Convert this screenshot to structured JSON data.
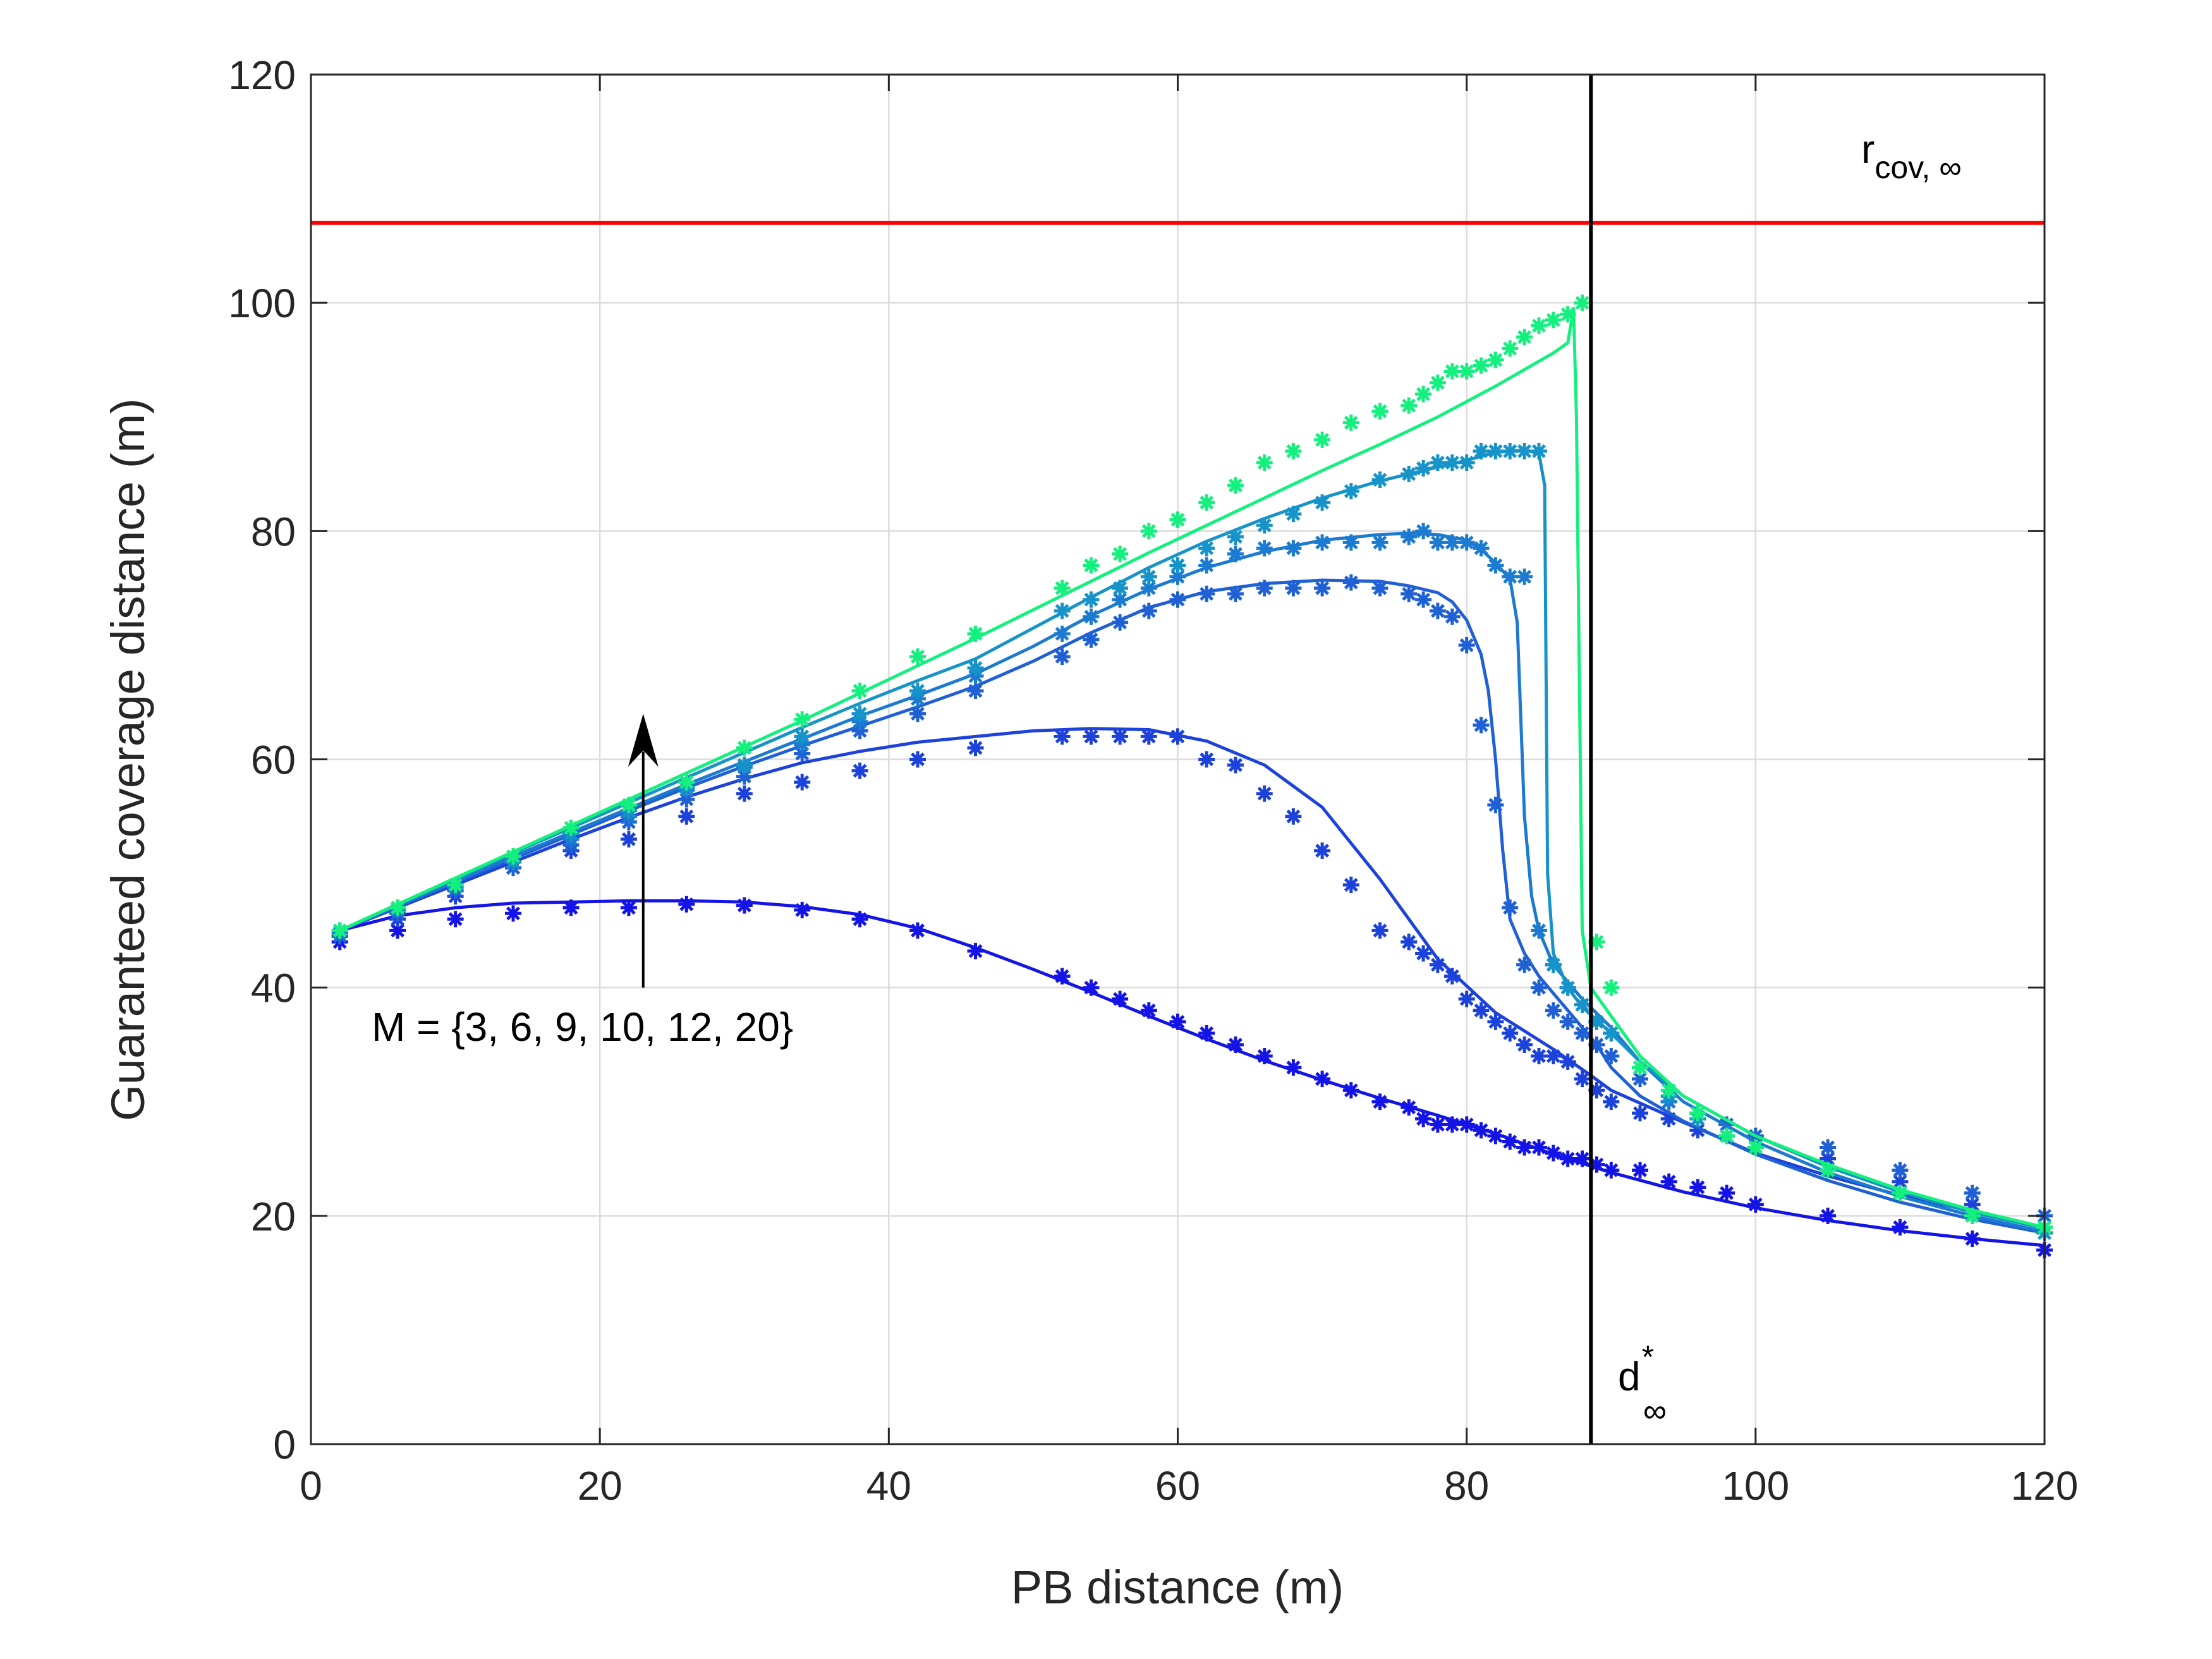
{
  "chart_data": {
    "type": "line",
    "xlabel": "PB distance (m)",
    "ylabel": "Guaranteed coverage distance (m)",
    "xlim": [
      0,
      120
    ],
    "ylim": [
      0,
      120
    ],
    "xticks": [
      0,
      20,
      40,
      60,
      80,
      100,
      120
    ],
    "yticks": [
      0,
      20,
      40,
      60,
      80,
      100,
      120
    ],
    "xtick_labels": [
      "0",
      "20",
      "40",
      "60",
      "80",
      "100",
      "120"
    ],
    "ytick_labels": [
      "0",
      "20",
      "40",
      "60",
      "80",
      "100",
      "120"
    ],
    "grid": true,
    "hline": {
      "y": 107,
      "label_main": "r",
      "label_sub": "cov, ∞",
      "color": "#ff0000"
    },
    "vline": {
      "x": 88.6,
      "label_main": "d",
      "label_sup": "*",
      "label_sub": "∞",
      "color": "#000000"
    },
    "annotation": {
      "text": "M = {3, 6, 9, 10, 12, 20}",
      "arrow_x": 23,
      "arrow_from_y": 40,
      "arrow_to_y": 64
    },
    "series": [
      {
        "name": "M=3",
        "color": "#1414e6",
        "x": [
          2,
          6,
          10,
          14,
          18,
          22,
          26,
          30,
          34,
          38,
          42,
          46,
          50,
          54,
          58,
          62,
          66,
          70,
          74,
          78,
          82,
          86,
          90,
          95,
          100,
          105,
          110,
          115,
          120
        ],
        "y": [
          45,
          46.3,
          47,
          47.4,
          47.5,
          47.6,
          47.6,
          47.5,
          47.1,
          46.4,
          45.2,
          43.5,
          41.6,
          39.6,
          37.5,
          35.5,
          33.6,
          31.9,
          30.3,
          28.8,
          27.2,
          25.4,
          23.8,
          22.1,
          20.7,
          19.6,
          18.7,
          18,
          17.4
        ],
        "mx": [
          2,
          6,
          10,
          14,
          18,
          22,
          26,
          30,
          34,
          38,
          42,
          46,
          52,
          54,
          56,
          58,
          60,
          62,
          64,
          66,
          68,
          70,
          72,
          74,
          76,
          77,
          78,
          79,
          80,
          81,
          82,
          83,
          84,
          85,
          86,
          87,
          88,
          89,
          90,
          92,
          94,
          96,
          98,
          100,
          105,
          110,
          115,
          120
        ],
        "my": [
          44,
          45,
          46,
          46.5,
          47,
          47,
          47.3,
          47.2,
          46.8,
          46,
          45,
          43.2,
          41,
          40,
          39,
          38,
          37,
          36,
          35,
          34,
          33,
          32,
          31,
          30,
          29.5,
          28.5,
          28,
          28,
          28,
          27.5,
          27,
          26.5,
          26,
          26,
          25.5,
          25,
          25,
          24.5,
          24,
          24,
          23,
          22.5,
          22,
          21,
          20,
          19,
          18,
          17
        ]
      },
      {
        "name": "M=6",
        "color": "#1c42db",
        "x": [
          2,
          6,
          10,
          14,
          18,
          22,
          26,
          30,
          34,
          38,
          42,
          46,
          50,
          54,
          58,
          62,
          66,
          70,
          74,
          78,
          82,
          86,
          88.6,
          90,
          95,
          100,
          105,
          110,
          115,
          120
        ],
        "y": [
          45,
          47,
          49,
          51,
          53,
          54.9,
          56.7,
          58.3,
          59.7,
          60.7,
          61.5,
          62,
          62.5,
          62.7,
          62.6,
          61.6,
          59.5,
          55.8,
          49.5,
          42.5,
          37.8,
          34.6,
          32.3,
          31,
          28.2,
          25.5,
          23.5,
          21.8,
          20.4,
          19
        ],
        "mx": [
          2,
          6,
          10,
          14,
          18,
          22,
          26,
          30,
          34,
          38,
          42,
          46,
          52,
          54,
          56,
          58,
          60,
          62,
          64,
          66,
          68,
          70,
          72,
          74,
          76,
          77,
          78,
          79,
          80,
          81,
          82,
          83,
          84,
          85,
          86,
          87,
          88,
          89,
          90,
          92,
          94,
          96,
          98,
          100,
          105,
          110,
          115,
          120
        ],
        "my": [
          44.5,
          46,
          48,
          50.5,
          52,
          53,
          55,
          57,
          58,
          59,
          60,
          61,
          62,
          62,
          62,
          62,
          62,
          60,
          59.5,
          57,
          55,
          52,
          49,
          45,
          44,
          43,
          42,
          41,
          39,
          38,
          37,
          36,
          35,
          34,
          34,
          33.5,
          32,
          31,
          30,
          29,
          28.5,
          27.5,
          27,
          26,
          25,
          23,
          21,
          19
        ]
      },
      {
        "name": "M=9",
        "color": "#2060d5",
        "x": [
          2,
          6,
          10,
          14,
          18,
          22,
          26,
          30,
          34,
          38,
          42,
          46,
          50,
          54,
          58,
          62,
          66,
          70,
          74,
          76,
          78,
          79,
          80,
          81,
          81.5,
          82,
          82.5,
          83,
          84,
          85,
          86,
          87,
          88,
          89,
          90,
          92,
          95,
          100,
          105,
          110,
          115,
          120
        ],
        "y": [
          45,
          47.1,
          49.2,
          51.3,
          53.4,
          55.5,
          57.5,
          59.4,
          61.2,
          62.9,
          64.6,
          66.4,
          68.6,
          71.1,
          73.3,
          74.7,
          75.4,
          75.7,
          75.6,
          75.2,
          74.6,
          73.8,
          72.2,
          69.2,
          66,
          60,
          52,
          46,
          43,
          41,
          39.5,
          38,
          36.5,
          35,
          33,
          30.5,
          28.3,
          25.4,
          23.1,
          21.2,
          19.7,
          18.5
        ],
        "mx": [
          2,
          6,
          10,
          14,
          18,
          22,
          26,
          30,
          34,
          38,
          42,
          46,
          52,
          54,
          56,
          58,
          60,
          62,
          64,
          66,
          68,
          70,
          72,
          74,
          76,
          77,
          78,
          79,
          80,
          81,
          82,
          83,
          84,
          85,
          86,
          87,
          88,
          89,
          90,
          92,
          94,
          96,
          98,
          100,
          105,
          110,
          115,
          120
        ],
        "my": [
          44.5,
          46.5,
          48.5,
          50.5,
          52.5,
          54.5,
          56.5,
          58.5,
          60.5,
          62.5,
          64,
          66,
          69,
          70.5,
          72,
          73,
          74,
          74.5,
          74.5,
          75,
          75,
          75,
          75.5,
          75,
          74.5,
          74,
          73,
          72.5,
          70,
          63,
          56,
          47,
          42,
          40,
          38,
          37,
          36,
          35,
          34,
          32,
          30,
          29,
          28,
          27,
          26,
          24,
          22,
          20
        ]
      },
      {
        "name": "M=10",
        "color": "#1c7bd0",
        "x": [
          2,
          6,
          10,
          14,
          18,
          22,
          26,
          30,
          34,
          38,
          42,
          46,
          50,
          54,
          58,
          62,
          66,
          70,
          74,
          76,
          78,
          80,
          81,
          82,
          83,
          83.5,
          84,
          84.5,
          85,
          86,
          88,
          90,
          92,
          95,
          100,
          105,
          110,
          115,
          120
        ],
        "y": [
          45,
          47.2,
          49.3,
          51.5,
          53.6,
          55.7,
          57.8,
          59.8,
          61.8,
          63.8,
          65.6,
          67.5,
          69.9,
          72.6,
          74.9,
          76.8,
          78.2,
          79.2,
          79.7,
          79.8,
          79.7,
          79.2,
          78.4,
          77.2,
          75.8,
          72,
          55,
          48,
          45,
          42,
          39,
          36.5,
          33.5,
          30,
          26.5,
          23.8,
          21.7,
          20,
          18.6
        ],
        "mx": [
          2,
          6,
          10,
          14,
          18,
          22,
          26,
          30,
          34,
          38,
          42,
          46,
          52,
          54,
          56,
          58,
          60,
          62,
          64,
          66,
          68,
          70,
          72,
          74,
          76,
          77,
          78,
          79,
          80,
          81,
          82,
          83,
          84,
          85,
          86,
          87,
          88,
          89,
          90,
          92,
          94,
          96,
          98,
          100,
          105,
          110,
          115,
          120
        ],
        "my": [
          44.8,
          46.8,
          48.8,
          51,
          53,
          55,
          57.3,
          59.3,
          61.3,
          63.3,
          65.3,
          67.3,
          71,
          72.5,
          74,
          75,
          76,
          77,
          78,
          78.5,
          78.5,
          79,
          79,
          79,
          79.5,
          80,
          79,
          79,
          79,
          78.5,
          77,
          76,
          76,
          45,
          42,
          40,
          38.5,
          37,
          36,
          33,
          30,
          28.5,
          27,
          26,
          24,
          22,
          20,
          18.5
        ]
      },
      {
        "name": "M=12",
        "color": "#1693c8",
        "x": [
          2,
          6,
          10,
          14,
          18,
          22,
          26,
          30,
          34,
          38,
          42,
          46,
          50,
          54,
          58,
          62,
          66,
          70,
          74,
          78,
          80,
          82,
          84,
          85,
          85.4,
          85.6,
          86,
          87,
          88,
          90,
          92,
          95,
          100,
          105,
          110,
          115,
          120
        ],
        "y": [
          45,
          47.3,
          49.5,
          51.8,
          54,
          56.2,
          58.4,
          60.6,
          62.8,
          64.9,
          66.9,
          68.8,
          71.5,
          74.2,
          76.8,
          79.1,
          81.1,
          82.9,
          84.4,
          85.6,
          86.2,
          86.9,
          87.1,
          86.8,
          84,
          50,
          43,
          40,
          38.3,
          36,
          33.5,
          30.5,
          27,
          24.3,
          22.1,
          20.3,
          18.9
        ],
        "mx": [
          2,
          6,
          10,
          14,
          18,
          22,
          26,
          30,
          34,
          38,
          42,
          46,
          52,
          54,
          56,
          58,
          60,
          62,
          64,
          66,
          68,
          70,
          72,
          74,
          76,
          77,
          78,
          79,
          80,
          81,
          82,
          83,
          84,
          85,
          86,
          87,
          88,
          89,
          90,
          92,
          94,
          96,
          98,
          100,
          105,
          110,
          115,
          120
        ],
        "my": [
          45,
          47,
          49,
          51,
          53.5,
          55.5,
          57.5,
          59.5,
          62,
          64,
          66,
          68,
          73,
          74,
          75,
          76,
          77,
          78.5,
          79.5,
          80.5,
          81.5,
          82.5,
          83.5,
          84.5,
          85,
          85.5,
          86,
          86,
          86,
          87,
          87,
          87,
          87,
          87,
          42,
          40,
          38.5,
          37,
          36,
          33,
          30.5,
          28.5,
          27,
          26,
          24,
          22,
          20,
          18.5
        ]
      },
      {
        "name": "M=20",
        "color": "#14f07e",
        "x": [
          2,
          6,
          10,
          14,
          18,
          22,
          26,
          30,
          34,
          38,
          42,
          46,
          50,
          54,
          58,
          62,
          66,
          70,
          74,
          78,
          82,
          86,
          87,
          87.4,
          87.6,
          88,
          88.6,
          90,
          92,
          95,
          100,
          105,
          110,
          115,
          120
        ],
        "y": [
          45,
          47.3,
          49.6,
          51.9,
          54.2,
          56.5,
          58.8,
          61.1,
          63.4,
          65.8,
          68.2,
          70.6,
          73.1,
          75.6,
          78.1,
          80.5,
          82.9,
          85.3,
          87.6,
          90,
          92.7,
          95.6,
          96.5,
          99.5,
          90,
          45,
          40,
          37.5,
          34,
          30.5,
          27,
          24.5,
          22.3,
          20.5,
          19
        ],
        "mx": [
          2,
          6,
          10,
          14,
          18,
          22,
          26,
          30,
          34,
          38,
          42,
          46,
          52,
          54,
          56,
          58,
          60,
          62,
          64,
          66,
          68,
          70,
          72,
          74,
          76,
          77,
          78,
          79,
          80,
          81,
          82,
          83,
          84,
          85,
          86,
          87,
          88,
          89,
          90,
          92,
          94,
          96,
          98,
          100,
          105,
          110,
          115,
          120
        ],
        "my": [
          45,
          47,
          49,
          51.5,
          54,
          56,
          58,
          61,
          63.5,
          66,
          69,
          71,
          75,
          77,
          78,
          80,
          81,
          82.5,
          84,
          86,
          87,
          88,
          89.5,
          90.5,
          91,
          92,
          93,
          94,
          94,
          94.5,
          95,
          96,
          97,
          98,
          98.5,
          99,
          100,
          44,
          40,
          33,
          31,
          29,
          27,
          26,
          24,
          22,
          20,
          19
        ]
      }
    ]
  }
}
